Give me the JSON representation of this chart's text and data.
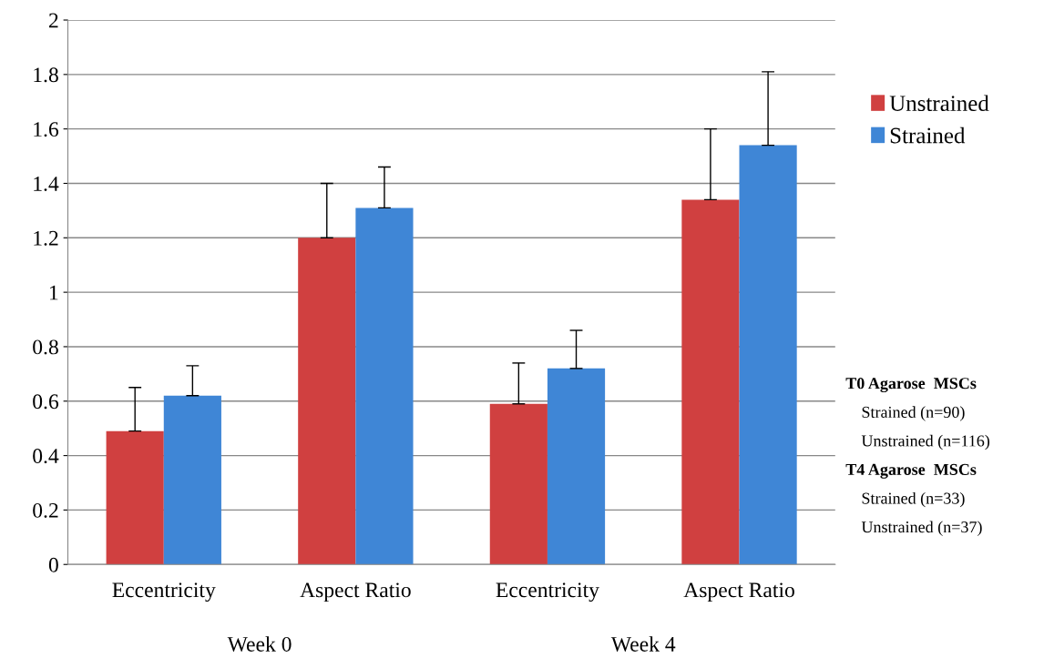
{
  "chart_data": {
    "type": "bar",
    "categories": [
      "Eccentricity",
      "Aspect Ratio",
      "Eccentricity",
      "Aspect Ratio"
    ],
    "series": [
      {
        "name": "Unstrained",
        "color": "#d04040",
        "values": [
          0.49,
          1.2,
          0.59,
          1.34
        ],
        "errors": [
          [
            0.49,
            0.65
          ],
          [
            1.2,
            1.4
          ],
          [
            0.59,
            0.74
          ],
          [
            1.34,
            1.6
          ]
        ]
      },
      {
        "name": "Strained",
        "color": "#3f86d6",
        "values": [
          0.62,
          1.31,
          0.72,
          1.54
        ],
        "errors": [
          [
            0.62,
            0.73
          ],
          [
            1.31,
            1.46
          ],
          [
            0.72,
            0.86
          ],
          [
            1.54,
            1.81
          ]
        ]
      }
    ],
    "ylim": [
      0,
      2
    ],
    "yticks": [
      0,
      0.2,
      0.4,
      0.6,
      0.8,
      1,
      1.2,
      1.4,
      1.6,
      1.8,
      2
    ],
    "grid": "y",
    "legend": "right",
    "annotations": [
      "Week 0",
      "Week 4",
      "T0 Agarose  MSCs",
      "Strained (n=90)",
      "Unstrained (n=116)",
      "T4 Agarose  MSCs",
      "Strained (n=33)",
      "Unstrained (n=37)"
    ]
  }
}
